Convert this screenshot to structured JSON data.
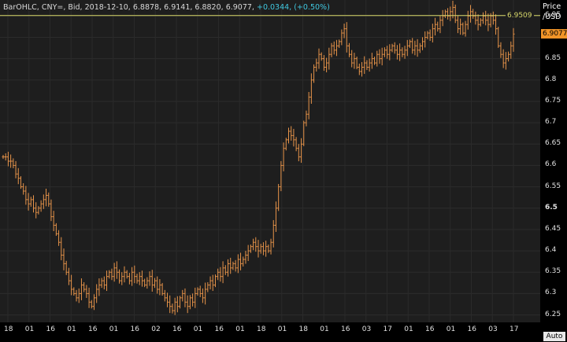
{
  "header": {
    "prefix": "BarOHLC, CNY=, Bid, 2018-12-10, 6.8878, 6.9141, 6.8820, 6.9077,",
    "change": "+0.0344, (+0.50%)"
  },
  "axis_title_1": "Price",
  "axis_title_2": "/USD",
  "auto_label": "Auto",
  "colors": {
    "bars": "#e8944a",
    "ref_line": "#d8d86a",
    "last_tag": "#f09428",
    "plot_bg": "#1e1e1e"
  },
  "chart_data": {
    "type": "ohlc",
    "ylim": [
      6.24,
      6.98
    ],
    "y_ticks": [
      "6.95",
      "6.9",
      "6.85",
      "6.8",
      "6.75",
      "6.7",
      "6.65",
      "6.6",
      "6.55",
      "6.5",
      "6.45",
      "6.4",
      "6.35",
      "6.3",
      "6.25"
    ],
    "x_tick_labels": [
      "18",
      "01",
      "16",
      "01",
      "16",
      "01",
      "16",
      "02",
      "16",
      "01",
      "16",
      "01",
      "18",
      "01",
      "18",
      "01",
      "16",
      "03",
      "17",
      "01",
      "16",
      "01",
      "16",
      "03",
      "17"
    ],
    "reference_line": 6.9509,
    "reference_label": "6.9509",
    "last_value": 6.9077,
    "last_label": "6.9077",
    "close_series": [
      6.62,
      6.62,
      6.61,
      6.61,
      6.6,
      6.58,
      6.57,
      6.55,
      6.54,
      6.52,
      6.51,
      6.52,
      6.5,
      6.49,
      6.5,
      6.51,
      6.52,
      6.53,
      6.51,
      6.48,
      6.46,
      6.44,
      6.42,
      6.39,
      6.37,
      6.35,
      6.33,
      6.31,
      6.3,
      6.29,
      6.3,
      6.32,
      6.31,
      6.3,
      6.28,
      6.27,
      6.29,
      6.31,
      6.32,
      6.33,
      6.32,
      6.34,
      6.35,
      6.34,
      6.36,
      6.35,
      6.33,
      6.34,
      6.35,
      6.34,
      6.33,
      6.35,
      6.34,
      6.33,
      6.34,
      6.33,
      6.32,
      6.33,
      6.34,
      6.32,
      6.33,
      6.31,
      6.32,
      6.3,
      6.29,
      6.28,
      6.27,
      6.26,
      6.28,
      6.27,
      6.29,
      6.3,
      6.28,
      6.27,
      6.29,
      6.28,
      6.3,
      6.31,
      6.3,
      6.29,
      6.31,
      6.32,
      6.33,
      6.32,
      6.34,
      6.35,
      6.34,
      6.36,
      6.35,
      6.37,
      6.36,
      6.37,
      6.36,
      6.38,
      6.37,
      6.38,
      6.39,
      6.4,
      6.41,
      6.42,
      6.41,
      6.4,
      6.41,
      6.4,
      6.41,
      6.4,
      6.42,
      6.46,
      6.5,
      6.55,
      6.6,
      6.64,
      6.66,
      6.68,
      6.67,
      6.66,
      6.64,
      6.62,
      6.65,
      6.7,
      6.72,
      6.76,
      6.8,
      6.83,
      6.84,
      6.86,
      6.85,
      6.83,
      6.84,
      6.86,
      6.88,
      6.87,
      6.88,
      6.89,
      6.91,
      6.92,
      6.88,
      6.86,
      6.84,
      6.85,
      6.83,
      6.82,
      6.83,
      6.84,
      6.83,
      6.84,
      6.85,
      6.84,
      6.86,
      6.85,
      6.86,
      6.87,
      6.86,
      6.87,
      6.88,
      6.87,
      6.86,
      6.87,
      6.86,
      6.87,
      6.88,
      6.89,
      6.87,
      6.88,
      6.87,
      6.88,
      6.89,
      6.9,
      6.91,
      6.9,
      6.92,
      6.93,
      6.92,
      6.94,
      6.95,
      6.96,
      6.95,
      6.96,
      6.97,
      6.94,
      6.92,
      6.93,
      6.91,
      6.93,
      6.95,
      6.96,
      6.95,
      6.94,
      6.93,
      6.94,
      6.95,
      6.94,
      6.93,
      6.95,
      6.94,
      6.92,
      6.88,
      6.86,
      6.84,
      6.85,
      6.86,
      6.88,
      6.9077
    ]
  }
}
